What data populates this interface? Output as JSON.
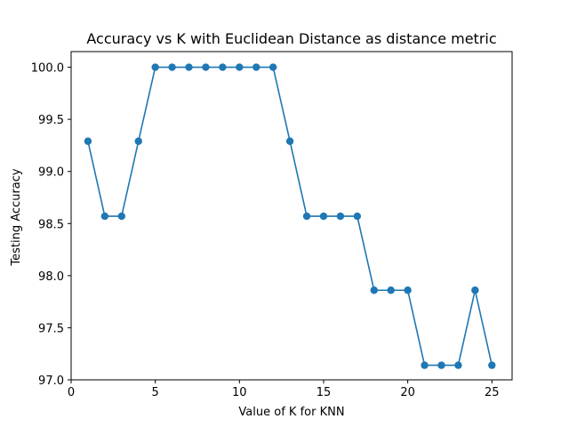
{
  "chart_data": {
    "type": "line",
    "title": "Accuracy vs K with Euclidean Distance as distance metric",
    "xlabel": "Value of K for KNN",
    "ylabel": "Testing Accuracy",
    "xlim": [
      0,
      26.2
    ],
    "ylim": [
      97.0,
      100.15
    ],
    "xticks": [
      0,
      5,
      10,
      15,
      20,
      25
    ],
    "xtick_labels": [
      "0",
      "5",
      "10",
      "15",
      "20",
      "25"
    ],
    "yticks": [
      97.0,
      97.5,
      98.0,
      98.5,
      99.0,
      99.5,
      100.0
    ],
    "ytick_labels": [
      "97.0",
      "97.5",
      "98.0",
      "98.5",
      "99.0",
      "99.5",
      "100.0"
    ],
    "grid": false,
    "legend": "none",
    "series": [
      {
        "color": "#1f77b4",
        "marker": "circle",
        "x": [
          1,
          2,
          3,
          4,
          5,
          6,
          7,
          8,
          9,
          10,
          11,
          12,
          13,
          14,
          15,
          16,
          17,
          18,
          19,
          20,
          21,
          22,
          23,
          24,
          25
        ],
        "y": [
          99.29,
          98.57,
          98.57,
          99.29,
          100.0,
          100.0,
          100.0,
          100.0,
          100.0,
          100.0,
          100.0,
          100.0,
          99.29,
          98.57,
          98.57,
          98.57,
          98.57,
          97.86,
          97.86,
          97.86,
          97.14,
          97.14,
          97.14,
          97.86,
          97.14
        ]
      }
    ]
  }
}
